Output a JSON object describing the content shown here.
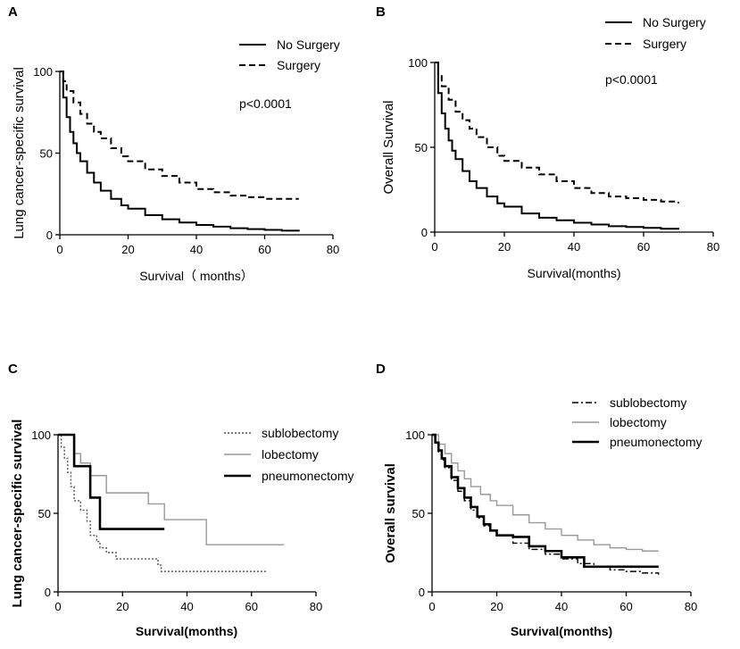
{
  "chart_data": [
    {
      "panel": "A",
      "type": "line",
      "ylabel": "Lung cancer-specific survival",
      "xlabel": "Survival（ months）",
      "xlim": [
        0,
        80
      ],
      "ylim": [
        0,
        100
      ],
      "xticks": [
        0,
        20,
        40,
        60,
        80
      ],
      "yticks": [
        0,
        50,
        100
      ],
      "annotation": "p<0.0001",
      "series": [
        {
          "name": "No Surgery",
          "style": "solid",
          "x": [
            0,
            1,
            2,
            3,
            4,
            5,
            6,
            8,
            10,
            12,
            15,
            18,
            20,
            25,
            30,
            35,
            40,
            45,
            50,
            55,
            60,
            65,
            70
          ],
          "y": [
            100,
            84,
            72,
            63,
            56,
            50,
            45,
            38,
            32,
            27,
            22,
            18,
            16,
            12,
            9.5,
            7.5,
            6,
            5,
            4,
            3.5,
            3,
            2.5,
            2
          ]
        },
        {
          "name": "Surgery",
          "style": "dashed",
          "x": [
            0,
            1,
            2,
            4,
            6,
            8,
            10,
            12,
            15,
            18,
            20,
            25,
            30,
            35,
            40,
            45,
            50,
            55,
            60,
            65,
            70
          ],
          "y": [
            100,
            94,
            88,
            81,
            74,
            68,
            63,
            59,
            53,
            48,
            45,
            40,
            36,
            32,
            28,
            26,
            24,
            23,
            22,
            22,
            22
          ]
        }
      ]
    },
    {
      "panel": "B",
      "type": "line",
      "ylabel": "Overall Survival",
      "xlabel": "Survival(months)",
      "xlim": [
        0,
        80
      ],
      "ylim": [
        0,
        100
      ],
      "xticks": [
        0,
        20,
        40,
        60,
        80
      ],
      "yticks": [
        0,
        50,
        100
      ],
      "annotation": "p<0.0001",
      "series": [
        {
          "name": "No Surgery",
          "style": "solid",
          "x": [
            0,
            1,
            2,
            3,
            4,
            5,
            6,
            8,
            10,
            12,
            15,
            18,
            20,
            25,
            30,
            35,
            40,
            45,
            50,
            55,
            60,
            65,
            70
          ],
          "y": [
            100,
            82,
            70,
            61,
            54,
            48,
            43,
            36,
            30,
            26,
            21,
            17,
            15,
            11,
            8.5,
            7,
            5.5,
            4.5,
            3.5,
            3,
            2.5,
            2,
            1.5
          ]
        },
        {
          "name": "Surgery",
          "style": "dashed",
          "x": [
            0,
            1,
            2,
            4,
            6,
            8,
            10,
            12,
            15,
            18,
            20,
            25,
            30,
            35,
            40,
            45,
            50,
            55,
            60,
            65,
            70
          ],
          "y": [
            100,
            93,
            86,
            78,
            71,
            66,
            61,
            56,
            50,
            45,
            42,
            38,
            34,
            30,
            26,
            23,
            21,
            20,
            19,
            18,
            17
          ]
        }
      ]
    },
    {
      "panel": "C",
      "type": "line",
      "ylabel": "Lung cancer-specific survival",
      "xlabel": "Survival(months)",
      "xlim": [
        0,
        80
      ],
      "ylim": [
        0,
        100
      ],
      "xticks": [
        0,
        20,
        40,
        60,
        80
      ],
      "yticks": [
        0,
        50,
        100
      ],
      "series": [
        {
          "name": "sublobectomy",
          "style": "dotted",
          "color": "#555555",
          "x": [
            0,
            1,
            2,
            3,
            4,
            5,
            7,
            9,
            10,
            12,
            13,
            15,
            18,
            27,
            31,
            32,
            33,
            65
          ],
          "y": [
            100,
            92,
            85,
            76,
            67,
            58,
            52,
            45,
            36,
            32,
            28,
            25,
            21,
            21,
            17,
            13,
            13,
            13
          ]
        },
        {
          "name": "lobectomy",
          "style": "solid",
          "color": "#999999",
          "x": [
            0,
            5,
            7,
            10,
            15,
            20,
            28,
            33,
            38,
            46,
            52,
            70
          ],
          "y": [
            100,
            88,
            82,
            74,
            63,
            63,
            56,
            46,
            46,
            30,
            30,
            30
          ]
        },
        {
          "name": "pneumonectomy",
          "style": "solid",
          "color": "#000000",
          "x": [
            0,
            4,
            5,
            9,
            10,
            13,
            33
          ],
          "y": [
            100,
            100,
            80,
            80,
            60,
            40,
            40
          ]
        }
      ]
    },
    {
      "panel": "D",
      "type": "line",
      "ylabel": "Overall survival",
      "xlabel": "Survival(months)",
      "xlim": [
        0,
        80
      ],
      "ylim": [
        0,
        100
      ],
      "xticks": [
        0,
        20,
        40,
        60,
        80
      ],
      "yticks": [
        0,
        50,
        100
      ],
      "series": [
        {
          "name": "sublobectomy",
          "style": "dashdot",
          "color": "#000000",
          "x": [
            0,
            1,
            2,
            3,
            4,
            6,
            8,
            10,
            12,
            14,
            16,
            18,
            20,
            25,
            30,
            35,
            40,
            45,
            50,
            55,
            60,
            65,
            70
          ],
          "y": [
            100,
            95,
            89,
            84,
            79,
            71,
            64,
            58,
            52,
            47,
            42,
            39,
            36,
            31,
            27,
            24,
            21,
            18,
            16,
            14,
            13,
            12,
            11
          ]
        },
        {
          "name": "lobectomy",
          "style": "solid",
          "color": "#999999",
          "x": [
            0,
            2,
            4,
            6,
            8,
            10,
            12,
            15,
            18,
            20,
            25,
            30,
            35,
            40,
            45,
            50,
            55,
            60,
            65,
            70
          ],
          "y": [
            100,
            94,
            88,
            82,
            77,
            72,
            67,
            62,
            58,
            55,
            49,
            44,
            40,
            36,
            33,
            30,
            28,
            27,
            26,
            26
          ]
        },
        {
          "name": "pneumonectomy",
          "style": "solid",
          "color": "#000000",
          "x": [
            0,
            1,
            2,
            3,
            4,
            6,
            8,
            10,
            12,
            14,
            16,
            18,
            20,
            25,
            30,
            35,
            40,
            47,
            55,
            60,
            65,
            70
          ],
          "y": [
            100,
            95,
            90,
            85,
            80,
            73,
            66,
            60,
            54,
            48,
            43,
            39,
            36,
            35,
            29,
            26,
            22,
            16,
            16,
            16,
            16,
            16
          ]
        }
      ]
    }
  ],
  "legends": {
    "A": [
      "No Surgery",
      "Surgery"
    ],
    "B": [
      "No Surgery",
      "Surgery"
    ],
    "C": [
      "sublobectomy",
      "lobectomy",
      "pneumonectomy"
    ],
    "D": [
      "sublobectomy",
      "lobectomy",
      "pneumonectomy"
    ]
  }
}
